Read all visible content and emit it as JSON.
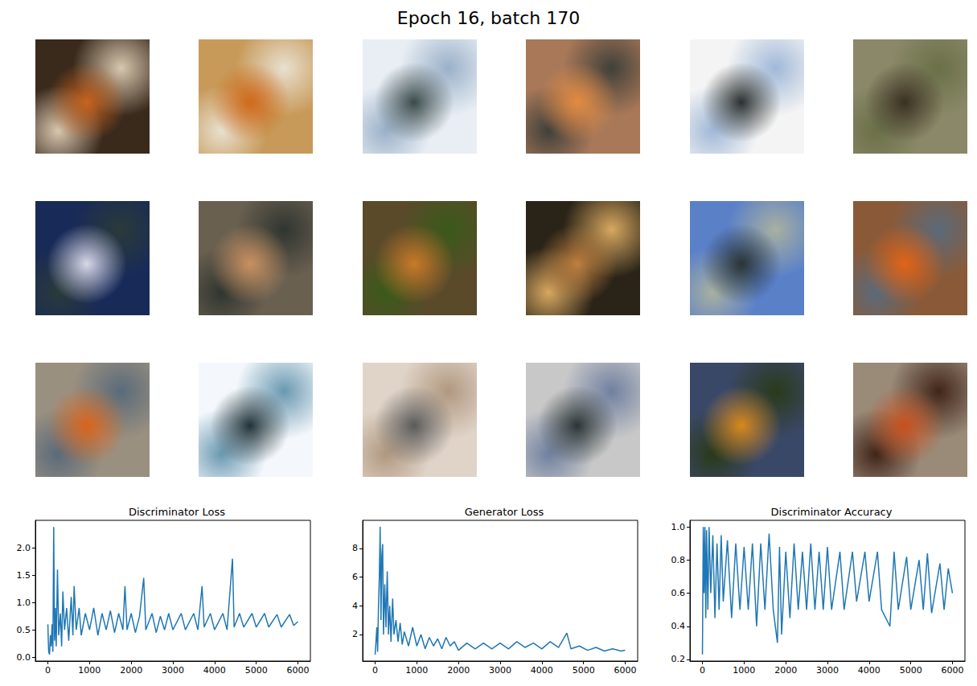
{
  "title": "Epoch 16, batch 170",
  "chart_data": [
    {
      "type": "line",
      "title": "Discriminator Loss",
      "color": "#1f77b4",
      "grid": false,
      "x": [
        0,
        10,
        20,
        40,
        60,
        80,
        100,
        120,
        140,
        160,
        180,
        200,
        230,
        260,
        300,
        330,
        360,
        400,
        450,
        500,
        560,
        600,
        630,
        680,
        750,
        800,
        900,
        1000,
        1100,
        1200,
        1300,
        1400,
        1500,
        1600,
        1700,
        1800,
        1850,
        1900,
        2000,
        2100,
        2200,
        2300,
        2350,
        2500,
        2600,
        2700,
        2800,
        2900,
        3000,
        3200,
        3300,
        3500,
        3600,
        3700,
        3750,
        3900,
        4000,
        4200,
        4300,
        4430,
        4470,
        4600,
        4700,
        4900,
        5000,
        5200,
        5300,
        5500,
        5600,
        5800,
        5900,
        6000
      ],
      "values": [
        0.6,
        0.3,
        0.1,
        0.05,
        0.4,
        0.2,
        0.6,
        0.1,
        2.38,
        0.3,
        0.9,
        0.2,
        1.6,
        0.4,
        0.8,
        0.2,
        1.2,
        0.5,
        0.9,
        0.3,
        1.1,
        0.4,
        1.3,
        0.5,
        0.9,
        0.4,
        0.8,
        0.5,
        0.9,
        0.4,
        0.8,
        0.5,
        0.85,
        0.45,
        0.8,
        0.5,
        1.3,
        0.5,
        0.8,
        0.45,
        0.75,
        1.45,
        0.5,
        0.8,
        0.45,
        0.75,
        0.5,
        0.8,
        0.5,
        0.8,
        0.5,
        0.8,
        0.5,
        1.3,
        0.55,
        0.8,
        0.5,
        0.8,
        0.5,
        1.8,
        0.55,
        0.8,
        0.55,
        0.8,
        0.55,
        0.8,
        0.55,
        0.78,
        0.55,
        0.78,
        0.58,
        0.65
      ],
      "xlim": [
        -300,
        6300
      ],
      "xticks": [
        0,
        1000,
        2000,
        3000,
        4000,
        5000,
        6000
      ],
      "ylim": [
        -0.07,
        2.5
      ],
      "yticks": [
        {
          "value": 0,
          "label": "0.0"
        },
        0.5,
        {
          "value": 1,
          "label": "1.0"
        },
        1.5,
        {
          "value": 2,
          "label": "2.0"
        }
      ]
    },
    {
      "type": "line",
      "title": "Generator Loss",
      "color": "#1f77b4",
      "grid": false,
      "x": [
        0,
        20,
        40,
        60,
        80,
        100,
        120,
        140,
        160,
        180,
        200,
        230,
        260,
        290,
        320,
        350,
        380,
        420,
        450,
        500,
        550,
        600,
        650,
        700,
        800,
        900,
        1000,
        1100,
        1200,
        1300,
        1400,
        1500,
        1600,
        1700,
        1800,
        1900,
        2000,
        2200,
        2400,
        2600,
        2800,
        3000,
        3200,
        3400,
        3600,
        3800,
        4000,
        4200,
        4400,
        4600,
        4700,
        4900,
        5100,
        5300,
        5500,
        5700,
        5900,
        6000
      ],
      "values": [
        0.6,
        1.5,
        2.5,
        0.8,
        4,
        6,
        9.5,
        3,
        7.5,
        8.3,
        2,
        5.5,
        2.5,
        6.4,
        2,
        4,
        1.5,
        4.5,
        2,
        3,
        1.5,
        2.8,
        1.3,
        2.2,
        1.2,
        2.5,
        1.2,
        2,
        1,
        1.8,
        1.2,
        1.7,
        1,
        1.8,
        1.2,
        1.5,
        0.9,
        1.4,
        1,
        1.4,
        1,
        1.4,
        1,
        1.5,
        1.1,
        1.4,
        1,
        1.5,
        1.1,
        2.1,
        1,
        1.2,
        0.9,
        1.1,
        0.85,
        1,
        0.85,
        0.9
      ],
      "xlim": [
        -300,
        6300
      ],
      "xticks": [
        0,
        1000,
        2000,
        3000,
        4000,
        5000,
        6000
      ],
      "ylim": [
        0.15,
        9.95
      ],
      "yticks": [
        2,
        4,
        6,
        8
      ]
    },
    {
      "type": "line",
      "title": "Discriminator Accuracy",
      "color": "#1f77b4",
      "grid": false,
      "x": [
        0,
        20,
        40,
        60,
        80,
        100,
        130,
        160,
        200,
        250,
        300,
        350,
        400,
        450,
        500,
        600,
        700,
        800,
        900,
        1000,
        1100,
        1200,
        1300,
        1400,
        1500,
        1600,
        1700,
        1800,
        1850,
        1900,
        2000,
        2100,
        2200,
        2300,
        2400,
        2500,
        2600,
        2700,
        2800,
        2900,
        3000,
        3100,
        3300,
        3400,
        3600,
        3700,
        3900,
        4000,
        4200,
        4300,
        4500,
        4600,
        4700,
        4900,
        5000,
        5200,
        5300,
        5400,
        5500,
        5700,
        5800,
        5900,
        6000
      ],
      "values": [
        0.23,
        1,
        0.6,
        1,
        0.45,
        0.98,
        0.5,
        1,
        0.6,
        0.95,
        0.45,
        0.9,
        0.5,
        0.95,
        0.55,
        0.92,
        0.45,
        0.9,
        0.5,
        0.88,
        0.5,
        0.9,
        0.4,
        0.9,
        0.5,
        0.96,
        0.5,
        0.3,
        0.88,
        0.35,
        0.85,
        0.45,
        0.9,
        0.5,
        0.85,
        0.5,
        0.9,
        0.5,
        0.85,
        0.5,
        0.88,
        0.5,
        0.85,
        0.5,
        0.85,
        0.55,
        0.85,
        0.55,
        0.85,
        0.5,
        0.4,
        0.85,
        0.5,
        0.82,
        0.5,
        0.8,
        0.5,
        0.84,
        0.48,
        0.78,
        0.5,
        0.75,
        0.6
      ],
      "xlim": [
        -300,
        6300
      ],
      "xticks": [
        0,
        1000,
        2000,
        3000,
        4000,
        5000,
        6000
      ],
      "ylim": [
        0.19,
        1.04
      ],
      "yticks": [
        0.2,
        0.4,
        0.6,
        0.8,
        {
          "value": 1,
          "label": "1.0"
        }
      ]
    }
  ]
}
